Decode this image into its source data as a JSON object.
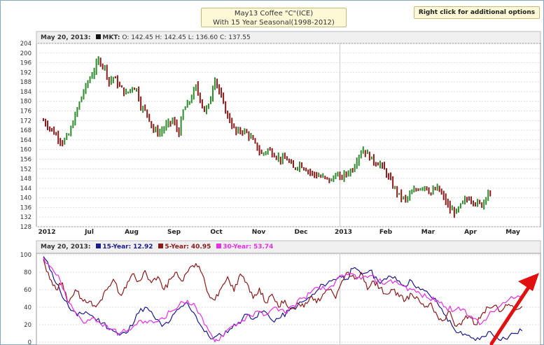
{
  "title": {
    "line1": "May13 Coffee \"C\"(ICE)",
    "line2": "With 15 Year Seasonal(1998-2012)"
  },
  "options_button": "Right click for additional options",
  "price_panel": {
    "date_label": "May 20, 2013:",
    "mkt_label": "MKT:",
    "o_label": "O:",
    "o_value": "142.45",
    "h_label": "H:",
    "h_value": "142.45",
    "l_label": "L:",
    "l_value": "136.60",
    "c_label": "C:",
    "c_value": "137.55"
  },
  "seasonal_panel": {
    "date_label": "May 20, 2013:",
    "s15_label": "15-Year:",
    "s15_value": "12.92",
    "s5_label": "5-Year:",
    "s5_value": "40.95",
    "s30_label": "30-Year:",
    "s30_value": "53.74"
  },
  "colors": {
    "up_bar": "#2e8b2e",
    "down_bar": "#8b1a1a",
    "s15": "#1a1a8c",
    "s5": "#8b1a1a",
    "s30": "#e62ee6",
    "arrow": "#e01010",
    "grid": "#dddddd"
  },
  "chart_data": [
    {
      "type": "ohlc",
      "title": "May13 Coffee \"C\"(ICE)",
      "x_unit": "month_index_from_jun_2012",
      "x_range": [
        0,
        11.3
      ],
      "x_ticks": [
        {
          "x": 0,
          "label": "2012"
        },
        {
          "x": 1,
          "label": "Jul"
        },
        {
          "x": 2,
          "label": "Aug"
        },
        {
          "x": 3,
          "label": "Sep"
        },
        {
          "x": 4,
          "label": "Oct"
        },
        {
          "x": 5,
          "label": "Nov"
        },
        {
          "x": 6,
          "label": "Dec"
        },
        {
          "x": 7,
          "label": "2013"
        },
        {
          "x": 8,
          "label": "Feb"
        },
        {
          "x": 9,
          "label": "Mar"
        },
        {
          "x": 10,
          "label": "Apr"
        },
        {
          "x": 11,
          "label": "May"
        }
      ],
      "ylim": [
        128,
        204
      ],
      "y_ticks": [
        128,
        132,
        136,
        140,
        144,
        148,
        152,
        156,
        160,
        164,
        168,
        172,
        176,
        180,
        184,
        188,
        192,
        196,
        200,
        204
      ],
      "closes": [
        [
          0.0,
          172
        ],
        [
          0.15,
          169
        ],
        [
          0.3,
          166
        ],
        [
          0.45,
          163
        ],
        [
          0.6,
          166
        ],
        [
          0.75,
          174
        ],
        [
          0.9,
          182
        ],
        [
          1.05,
          188
        ],
        [
          1.2,
          193
        ],
        [
          1.3,
          197
        ],
        [
          1.45,
          194
        ],
        [
          1.55,
          188
        ],
        [
          1.65,
          190
        ],
        [
          1.8,
          186
        ],
        [
          1.95,
          183
        ],
        [
          2.1,
          186
        ],
        [
          2.2,
          185
        ],
        [
          2.3,
          178
        ],
        [
          2.45,
          175
        ],
        [
          2.6,
          168
        ],
        [
          2.75,
          167
        ],
        [
          2.9,
          170
        ],
        [
          3.05,
          172
        ],
        [
          3.2,
          167
        ],
        [
          3.3,
          176
        ],
        [
          3.45,
          180
        ],
        [
          3.6,
          186
        ],
        [
          3.7,
          181
        ],
        [
          3.8,
          176
        ],
        [
          3.9,
          178
        ],
        [
          4.0,
          186
        ],
        [
          4.05,
          190
        ],
        [
          4.15,
          184
        ],
        [
          4.3,
          176
        ],
        [
          4.4,
          172
        ],
        [
          4.55,
          167
        ],
        [
          4.7,
          168
        ],
        [
          4.85,
          166
        ],
        [
          5.0,
          162
        ],
        [
          5.15,
          158
        ],
        [
          5.3,
          160
        ],
        [
          5.45,
          158
        ],
        [
          5.6,
          156
        ],
        [
          5.75,
          156
        ],
        [
          5.9,
          152
        ],
        [
          6.05,
          154
        ],
        [
          6.2,
          152
        ],
        [
          6.35,
          150
        ],
        [
          6.5,
          149
        ],
        [
          6.65,
          148
        ],
        [
          6.8,
          147
        ],
        [
          6.9,
          150
        ],
        [
          7.0,
          148
        ],
        [
          7.15,
          150
        ],
        [
          7.3,
          152
        ],
        [
          7.45,
          158
        ],
        [
          7.55,
          160
        ],
        [
          7.65,
          158
        ],
        [
          7.8,
          155
        ],
        [
          7.95,
          154
        ],
        [
          8.1,
          150
        ],
        [
          8.25,
          145
        ],
        [
          8.4,
          141
        ],
        [
          8.55,
          139
        ],
        [
          8.7,
          142
        ],
        [
          8.85,
          144
        ],
        [
          9.0,
          145
        ],
        [
          9.15,
          142
        ],
        [
          9.3,
          144
        ],
        [
          9.45,
          140
        ],
        [
          9.6,
          135
        ],
        [
          9.75,
          134
        ],
        [
          9.9,
          138
        ],
        [
          10.05,
          140
        ],
        [
          10.2,
          138
        ],
        [
          10.35,
          137
        ],
        [
          10.5,
          143
        ],
        [
          10.6,
          137
        ]
      ]
    },
    {
      "type": "line",
      "x_unit": "month_index_from_jun_2012",
      "x_range": [
        0,
        11.3
      ],
      "ylim": [
        0,
        100
      ],
      "y_ticks": [
        0,
        20,
        40,
        60,
        80,
        100
      ],
      "series": [
        {
          "name": "15-Year",
          "color": "#1a1a8c",
          "points": [
            [
              0.0,
              98
            ],
            [
              0.2,
              80
            ],
            [
              0.4,
              58
            ],
            [
              0.6,
              40
            ],
            [
              0.8,
              30
            ],
            [
              1.0,
              35
            ],
            [
              1.2,
              28
            ],
            [
              1.4,
              22
            ],
            [
              1.6,
              15
            ],
            [
              1.8,
              8
            ],
            [
              2.0,
              12
            ],
            [
              2.2,
              32
            ],
            [
              2.4,
              40
            ],
            [
              2.6,
              30
            ],
            [
              2.8,
              18
            ],
            [
              3.0,
              25
            ],
            [
              3.2,
              38
            ],
            [
              3.4,
              45
            ],
            [
              3.6,
              30
            ],
            [
              3.8,
              12
            ],
            [
              4.0,
              4
            ],
            [
              4.2,
              8
            ],
            [
              4.4,
              15
            ],
            [
              4.6,
              22
            ],
            [
              4.8,
              32
            ],
            [
              5.0,
              28
            ],
            [
              5.2,
              36
            ],
            [
              5.4,
              25
            ],
            [
              5.6,
              28
            ],
            [
              5.8,
              36
            ],
            [
              6.0,
              42
            ],
            [
              6.2,
              48
            ],
            [
              6.4,
              55
            ],
            [
              6.6,
              66
            ],
            [
              6.8,
              70
            ],
            [
              7.0,
              76
            ],
            [
              7.15,
              72
            ],
            [
              7.3,
              84
            ],
            [
              7.5,
              78
            ],
            [
              7.7,
              82
            ],
            [
              7.9,
              70
            ],
            [
              8.1,
              72
            ],
            [
              8.3,
              75
            ],
            [
              8.5,
              65
            ],
            [
              8.7,
              70
            ],
            [
              8.9,
              60
            ],
            [
              9.1,
              55
            ],
            [
              9.3,
              45
            ],
            [
              9.5,
              30
            ],
            [
              9.7,
              15
            ],
            [
              9.9,
              8
            ],
            [
              10.1,
              5
            ],
            [
              10.3,
              3
            ],
            [
              10.5,
              12
            ],
            [
              10.7,
              6
            ],
            [
              10.9,
              4
            ],
            [
              11.1,
              10
            ],
            [
              11.3,
              13
            ]
          ]
        },
        {
          "name": "5-Year",
          "color": "#8b1a1a",
          "points": [
            [
              0.0,
              95
            ],
            [
              0.15,
              72
            ],
            [
              0.3,
              60
            ],
            [
              0.45,
              68
            ],
            [
              0.6,
              45
            ],
            [
              0.75,
              60
            ],
            [
              0.9,
              50
            ],
            [
              1.05,
              45
            ],
            [
              1.2,
              42
            ],
            [
              1.35,
              48
            ],
            [
              1.5,
              60
            ],
            [
              1.65,
              72
            ],
            [
              1.8,
              55
            ],
            [
              1.95,
              62
            ],
            [
              2.1,
              78
            ],
            [
              2.25,
              70
            ],
            [
              2.4,
              82
            ],
            [
              2.55,
              68
            ],
            [
              2.7,
              75
            ],
            [
              2.85,
              60
            ],
            [
              3.0,
              72
            ],
            [
              3.15,
              80
            ],
            [
              3.3,
              70
            ],
            [
              3.45,
              85
            ],
            [
              3.6,
              90
            ],
            [
              3.75,
              78
            ],
            [
              3.9,
              55
            ],
            [
              4.05,
              48
            ],
            [
              4.2,
              62
            ],
            [
              4.35,
              75
            ],
            [
              4.5,
              58
            ],
            [
              4.65,
              78
            ],
            [
              4.8,
              68
            ],
            [
              4.95,
              50
            ],
            [
              5.1,
              62
            ],
            [
              5.25,
              45
            ],
            [
              5.4,
              55
            ],
            [
              5.55,
              40
            ],
            [
              5.7,
              48
            ],
            [
              5.85,
              38
            ],
            [
              6.0,
              45
            ],
            [
              6.15,
              40
            ],
            [
              6.3,
              52
            ],
            [
              6.45,
              45
            ],
            [
              6.6,
              55
            ],
            [
              6.75,
              60
            ],
            [
              6.9,
              50
            ],
            [
              7.05,
              70
            ],
            [
              7.2,
              80
            ],
            [
              7.35,
              72
            ],
            [
              7.5,
              80
            ],
            [
              7.65,
              60
            ],
            [
              7.8,
              70
            ],
            [
              7.95,
              62
            ],
            [
              8.1,
              55
            ],
            [
              8.25,
              60
            ],
            [
              8.4,
              52
            ],
            [
              8.55,
              48
            ],
            [
              8.7,
              55
            ],
            [
              8.85,
              50
            ],
            [
              9.0,
              40
            ],
            [
              9.15,
              45
            ],
            [
              9.3,
              30
            ],
            [
              9.45,
              25
            ],
            [
              9.6,
              35
            ],
            [
              9.75,
              18
            ],
            [
              9.9,
              25
            ],
            [
              10.05,
              30
            ],
            [
              10.2,
              20
            ],
            [
              10.35,
              32
            ],
            [
              10.5,
              40
            ],
            [
              10.65,
              42
            ],
            [
              10.8,
              35
            ],
            [
              10.95,
              42
            ],
            [
              11.1,
              40
            ],
            [
              11.3,
              41
            ]
          ]
        },
        {
          "name": "30-Year",
          "color": "#e62ee6",
          "points": [
            [
              0.0,
              97
            ],
            [
              0.2,
              85
            ],
            [
              0.4,
              70
            ],
            [
              0.6,
              45
            ],
            [
              0.8,
              32
            ],
            [
              1.0,
              22
            ],
            [
              1.2,
              28
            ],
            [
              1.4,
              18
            ],
            [
              1.6,
              15
            ],
            [
              1.8,
              10
            ],
            [
              2.0,
              14
            ],
            [
              2.2,
              20
            ],
            [
              2.4,
              24
            ],
            [
              2.6,
              22
            ],
            [
              2.8,
              28
            ],
            [
              3.0,
              35
            ],
            [
              3.2,
              42
            ],
            [
              3.4,
              48
            ],
            [
              3.6,
              40
            ],
            [
              3.8,
              20
            ],
            [
              4.0,
              5
            ],
            [
              4.1,
              2
            ],
            [
              4.3,
              12
            ],
            [
              4.5,
              20
            ],
            [
              4.7,
              25
            ],
            [
              4.9,
              30
            ],
            [
              5.1,
              35
            ],
            [
              5.3,
              32
            ],
            [
              5.5,
              40
            ],
            [
              5.7,
              34
            ],
            [
              5.9,
              42
            ],
            [
              6.1,
              50
            ],
            [
              6.3,
              56
            ],
            [
              6.5,
              62
            ],
            [
              6.7,
              60
            ],
            [
              6.9,
              70
            ],
            [
              7.1,
              75
            ],
            [
              7.3,
              78
            ],
            [
              7.5,
              72
            ],
            [
              7.7,
              76
            ],
            [
              7.9,
              70
            ],
            [
              8.1,
              68
            ],
            [
              8.3,
              70
            ],
            [
              8.5,
              64
            ],
            [
              8.7,
              60
            ],
            [
              8.9,
              55
            ],
            [
              9.1,
              50
            ],
            [
              9.3,
              48
            ],
            [
              9.5,
              40
            ],
            [
              9.7,
              36
            ],
            [
              9.9,
              38
            ],
            [
              10.1,
              30
            ],
            [
              10.3,
              20
            ],
            [
              10.5,
              30
            ],
            [
              10.7,
              38
            ],
            [
              10.9,
              45
            ],
            [
              11.1,
              50
            ],
            [
              11.3,
              54
            ]
          ]
        }
      ],
      "annotation": "red arrow pointing up-right"
    }
  ]
}
